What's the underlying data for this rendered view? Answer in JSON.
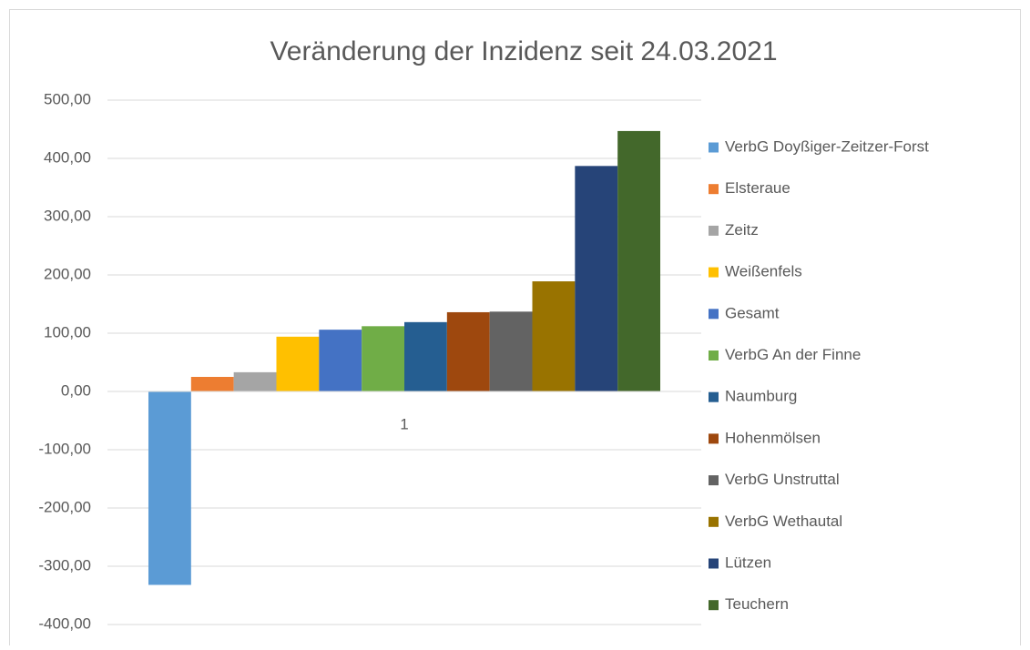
{
  "chart_data": {
    "type": "bar",
    "title": "Veränderung der Inzidenz seit 24.03.2021",
    "categories": [
      "1"
    ],
    "series": [
      {
        "name": "VerbG Doyßiger-Zeitzer-Forst",
        "color": "#5b9bd5",
        "values": [
          -332
        ]
      },
      {
        "name": "Elsteraue",
        "color": "#ed7d31",
        "values": [
          25
        ]
      },
      {
        "name": "Zeitz",
        "color": "#a5a5a5",
        "values": [
          33
        ]
      },
      {
        "name": "Weißenfels",
        "color": "#ffc000",
        "values": [
          94
        ]
      },
      {
        "name": "Gesamt",
        "color": "#4472c4",
        "values": [
          106
        ]
      },
      {
        "name": "VerbG An der Finne",
        "color": "#70ad47",
        "values": [
          112
        ]
      },
      {
        "name": "Naumburg",
        "color": "#255e91",
        "values": [
          119
        ]
      },
      {
        "name": "Hohenmölsen",
        "color": "#9e480e",
        "values": [
          136
        ]
      },
      {
        "name": "VerbG Unstruttal",
        "color": "#636363",
        "values": [
          137
        ]
      },
      {
        "name": "VerbG Wethautal",
        "color": "#997300",
        "values": [
          189
        ]
      },
      {
        "name": "Lützen",
        "color": "#264478",
        "values": [
          387
        ]
      },
      {
        "name": "Teuchern",
        "color": "#43682b",
        "values": [
          447
        ]
      }
    ],
    "ylim": [
      -400,
      500
    ],
    "yticks": [
      {
        "value": -400,
        "label": "-400,00"
      },
      {
        "value": -300,
        "label": "-300,00"
      },
      {
        "value": -200,
        "label": "-200,00"
      },
      {
        "value": -100,
        "label": "-100,00"
      },
      {
        "value": 0,
        "label": "0,00"
      },
      {
        "value": 100,
        "label": "100,00"
      },
      {
        "value": 200,
        "label": "200,00"
      },
      {
        "value": 300,
        "label": "300,00"
      },
      {
        "value": 400,
        "label": "400,00"
      },
      {
        "value": 500,
        "label": "500,00"
      }
    ],
    "grid": true,
    "legend": "right"
  }
}
